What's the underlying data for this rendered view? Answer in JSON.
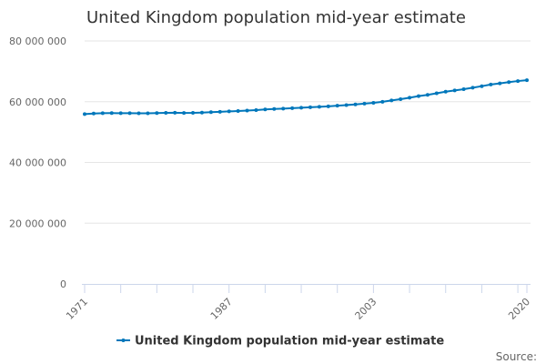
{
  "chart_data": {
    "type": "line",
    "title": "United Kingdom population mid-year estimate",
    "xlabel": "",
    "ylabel": "",
    "x": [
      1971,
      1972,
      1973,
      1974,
      1975,
      1976,
      1977,
      1978,
      1979,
      1980,
      1981,
      1982,
      1983,
      1984,
      1985,
      1986,
      1987,
      1988,
      1989,
      1990,
      1991,
      1992,
      1993,
      1994,
      1995,
      1996,
      1997,
      1998,
      1999,
      2000,
      2001,
      2002,
      2003,
      2004,
      2005,
      2006,
      2007,
      2008,
      2009,
      2010,
      2011,
      2012,
      2013,
      2014,
      2015,
      2016,
      2017,
      2018,
      2019,
      2020
    ],
    "series": [
      {
        "name": "United Kingdom population mid-year estimate",
        "color": "#0077bb",
        "values": [
          55928000,
          56097000,
          56223000,
          56236000,
          56226000,
          56216000,
          56190000,
          56178000,
          56240000,
          56330000,
          56357000,
          56291000,
          56316000,
          56409000,
          56554000,
          56684000,
          56804000,
          56916000,
          57076000,
          57237000,
          57439000,
          57585000,
          57714000,
          57862000,
          58025000,
          58164000,
          58314000,
          58475000,
          58684000,
          58886000,
          59113000,
          59366000,
          59637000,
          59950000,
          60413000,
          60827000,
          61319000,
          61824000,
          62260000,
          62759000,
          63285000,
          63705000,
          64106000,
          64597000,
          65110000,
          65648000,
          66040000,
          66436000,
          66797000,
          67081000
        ]
      }
    ],
    "ylim": [
      0,
      80000000
    ],
    "yticks": [
      "0",
      "20 000 000",
      "40 000 000",
      "60 000 000",
      "80 000 000"
    ],
    "ytick_values": [
      0,
      20000000,
      40000000,
      60000000,
      80000000
    ],
    "xticks": [
      "1971",
      "1987",
      "2003",
      "2020"
    ],
    "grid": "horizontal",
    "legend": "bottom-center",
    "source_label": "Source:"
  }
}
